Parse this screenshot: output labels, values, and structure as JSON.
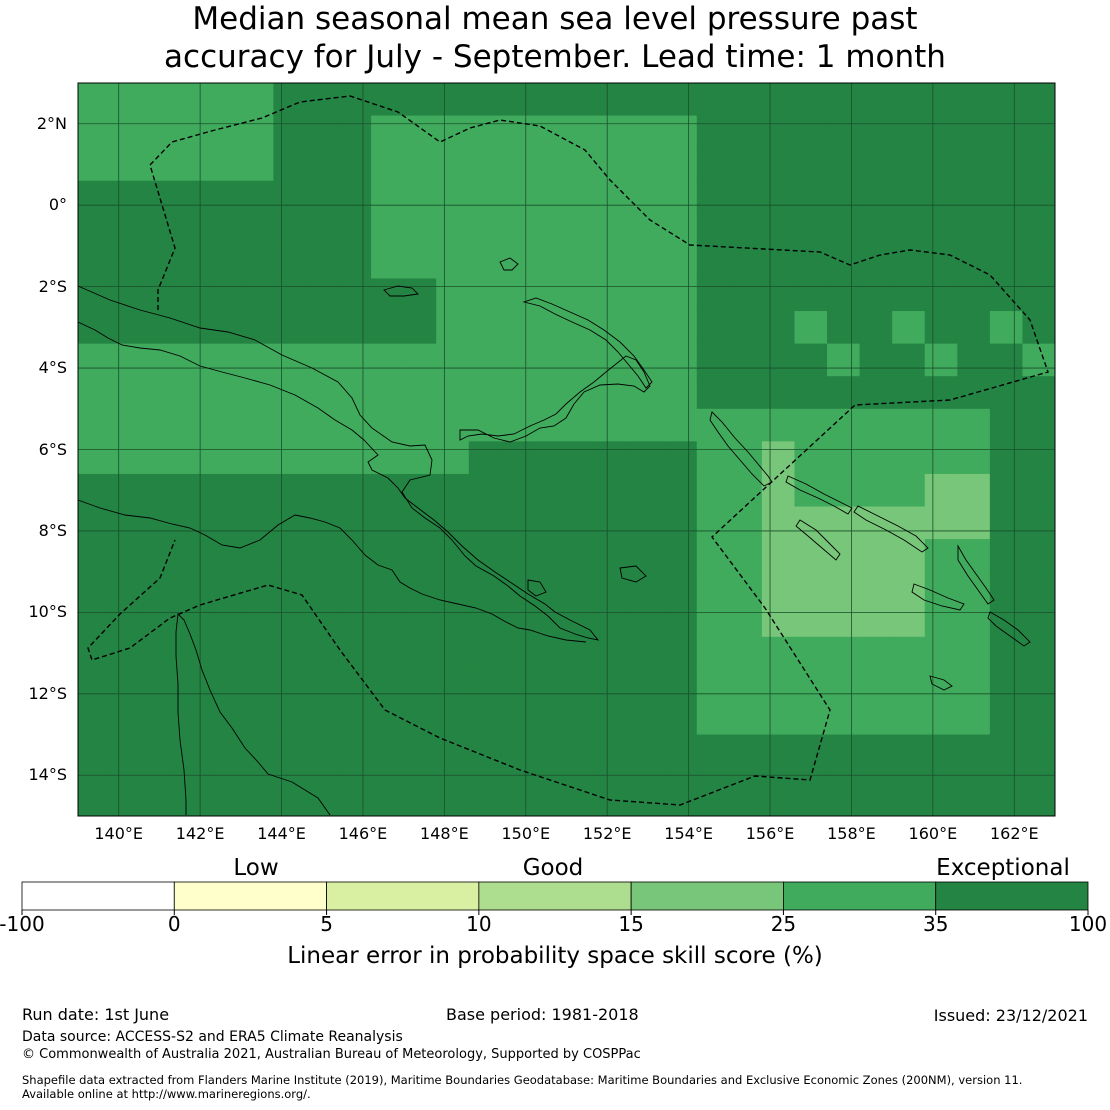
{
  "title": {
    "line1": "Median seasonal mean sea level pressure past",
    "line2": "accuracy for July - September. Lead time: 1 month"
  },
  "map": {
    "lon_labels": [
      "140°E",
      "142°E",
      "144°E",
      "146°E",
      "148°E",
      "150°E",
      "152°E",
      "154°E",
      "156°E",
      "158°E",
      "160°E",
      "162°E"
    ],
    "lat_labels": [
      "2°N",
      "0°",
      "2°S",
      "4°S",
      "6°S",
      "8°S",
      "10°S",
      "12°S",
      "14°S"
    ],
    "extent": {
      "lon": [
        139,
        163
      ],
      "lat": [
        -15,
        3
      ]
    },
    "grid_resolution_deg": 0.8,
    "grid": true,
    "colors": {
      "exceptional": "#238443",
      "good_high": "#41ab5d",
      "good_mid": "#78c679",
      "good_low": "#addd8e",
      "low_high": "#d9f0a3",
      "low": "#ffffcc",
      "neg": "#ffffff"
    }
  },
  "colorbar": {
    "categories": [
      "Low",
      "Good",
      "Exceptional"
    ],
    "ticks": [
      "-100",
      "0",
      "5",
      "10",
      "15",
      "25",
      "35",
      "100"
    ],
    "colors": [
      "#ffffff",
      "#ffffcc",
      "#d9f0a3",
      "#addd8e",
      "#78c679",
      "#41ab5d",
      "#238443"
    ],
    "label": "Linear error in probability space skill score (%)"
  },
  "footer": {
    "run_date": "Run date: 1st June",
    "base_period": "Base period: 1981-2018",
    "issued": "Issued: 23/12/2021",
    "data_source": "Data source: ACCESS-S2 and ERA5 Climate Reanalysis",
    "copyright": "© Commonwealth of Australia 2021, Australian Bureau of Meteorology, Supported by COSPPac",
    "shapefile_line1": "Shapefile data extracted from Flanders Marine Institute (2019), Maritime Boundaries Geodatabase: Maritime Boundaries and Exclusive Economic Zones (200NM), version 11.",
    "shapefile_line2": "Available online at http://www.marineregions.org/."
  }
}
